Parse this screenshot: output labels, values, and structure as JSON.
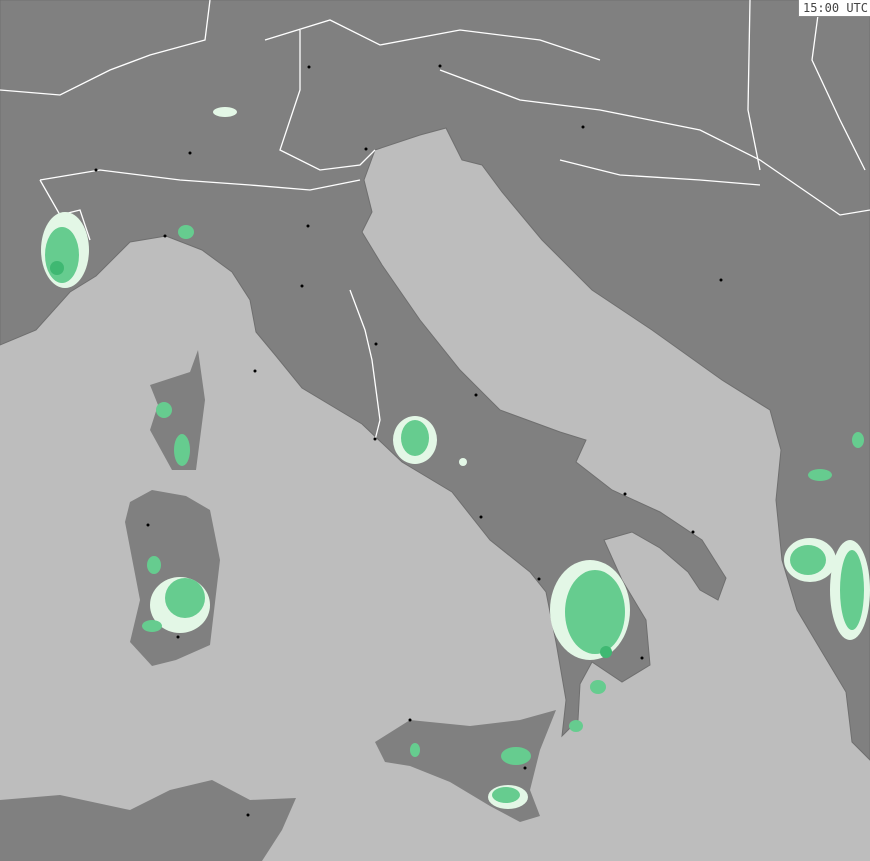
{
  "timestamp": "15:00 UTC",
  "colors": {
    "sea": "#bdbdbd",
    "land": "#808080",
    "border": "#ffffff",
    "precip_light": "#e3f7e6",
    "precip": "#66cc8f",
    "precip_heavy": "#3fb872",
    "city": "#000000"
  }
}
